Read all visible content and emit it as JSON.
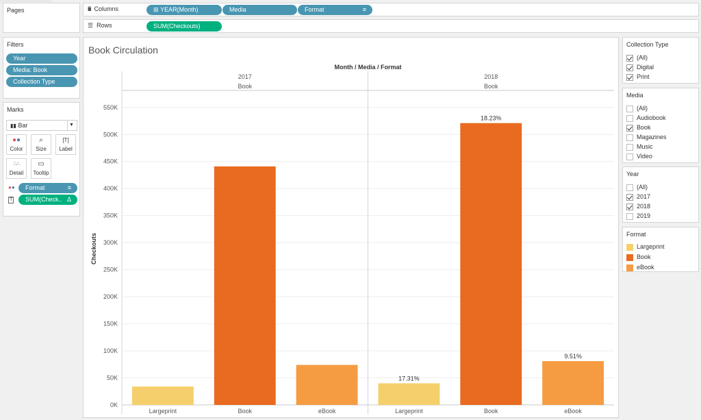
{
  "pages": {
    "title": "Pages"
  },
  "shelves": {
    "columns_label": "Columns",
    "rows_label": "Rows",
    "columns": [
      {
        "label": "YEAR(Month)",
        "prefix": "⊞"
      },
      {
        "label": "Media"
      },
      {
        "label": "Format"
      }
    ],
    "rows": [
      {
        "label": "SUM(Checkouts)"
      }
    ]
  },
  "filters": {
    "title": "Filters",
    "items": [
      "Year",
      "Media: Book",
      "Collection Type"
    ]
  },
  "marks": {
    "title": "Marks",
    "type": "Bar",
    "buttons": [
      "Color",
      "Size",
      "Label",
      "Detail",
      "Tooltip"
    ],
    "fields": [
      {
        "label": "Format",
        "color": "#4996b2"
      },
      {
        "label": "SUM(Check..",
        "color": "#00b180"
      }
    ]
  },
  "chart": {
    "title": "Book Circulation",
    "header": "Month / Media / Format",
    "ylabel": "Checkouts"
  },
  "chart_data": {
    "type": "bar",
    "title": "Book Circulation",
    "ylabel": "Checkouts",
    "ylim": [
      0,
      570000
    ],
    "yticks": [
      0,
      50000,
      100000,
      150000,
      200000,
      250000,
      300000,
      350000,
      400000,
      450000,
      500000,
      550000
    ],
    "ytick_labels": [
      "0K",
      "50K",
      "100K",
      "150K",
      "200K",
      "250K",
      "300K",
      "350K",
      "400K",
      "450K",
      "500K",
      "550K"
    ],
    "panes": [
      {
        "year": "2017",
        "media": "Book",
        "bars": [
          {
            "category": "Largeprint",
            "value": 34000,
            "label": ""
          },
          {
            "category": "Book",
            "value": 441000,
            "label": ""
          },
          {
            "category": "eBook",
            "value": 74000,
            "label": ""
          }
        ]
      },
      {
        "year": "2018",
        "media": "Book",
        "bars": [
          {
            "category": "Largeprint",
            "value": 40000,
            "label": "17.31%"
          },
          {
            "category": "Book",
            "value": 521000,
            "label": "18.23%"
          },
          {
            "category": "eBook",
            "value": 81000,
            "label": "9.51%"
          }
        ]
      }
    ],
    "colors": {
      "Largeprint": "#f5cf6b",
      "Book": "#e96b1f",
      "eBook": "#f59c42"
    },
    "grid": true
  },
  "collection_type": {
    "title": "Collection Type",
    "items": [
      {
        "label": "(All)",
        "checked": true
      },
      {
        "label": "Digital",
        "checked": true
      },
      {
        "label": "Print",
        "checked": true
      }
    ]
  },
  "media": {
    "title": "Media",
    "items": [
      {
        "label": "(All)",
        "checked": false
      },
      {
        "label": "Audiobook",
        "checked": false
      },
      {
        "label": "Book",
        "checked": true
      },
      {
        "label": "Magazines",
        "checked": false
      },
      {
        "label": "Music",
        "checked": false
      },
      {
        "label": "Video",
        "checked": false
      }
    ]
  },
  "year": {
    "title": "Year",
    "items": [
      {
        "label": "(All)",
        "checked": false
      },
      {
        "label": "2017",
        "checked": true
      },
      {
        "label": "2018",
        "checked": true
      },
      {
        "label": "2019",
        "checked": false
      }
    ]
  },
  "format_legend": {
    "title": "Format",
    "items": [
      {
        "label": "Largeprint",
        "color": "#f5cf6b"
      },
      {
        "label": "Book",
        "color": "#e96b1f"
      },
      {
        "label": "eBook",
        "color": "#f59c42"
      }
    ]
  }
}
